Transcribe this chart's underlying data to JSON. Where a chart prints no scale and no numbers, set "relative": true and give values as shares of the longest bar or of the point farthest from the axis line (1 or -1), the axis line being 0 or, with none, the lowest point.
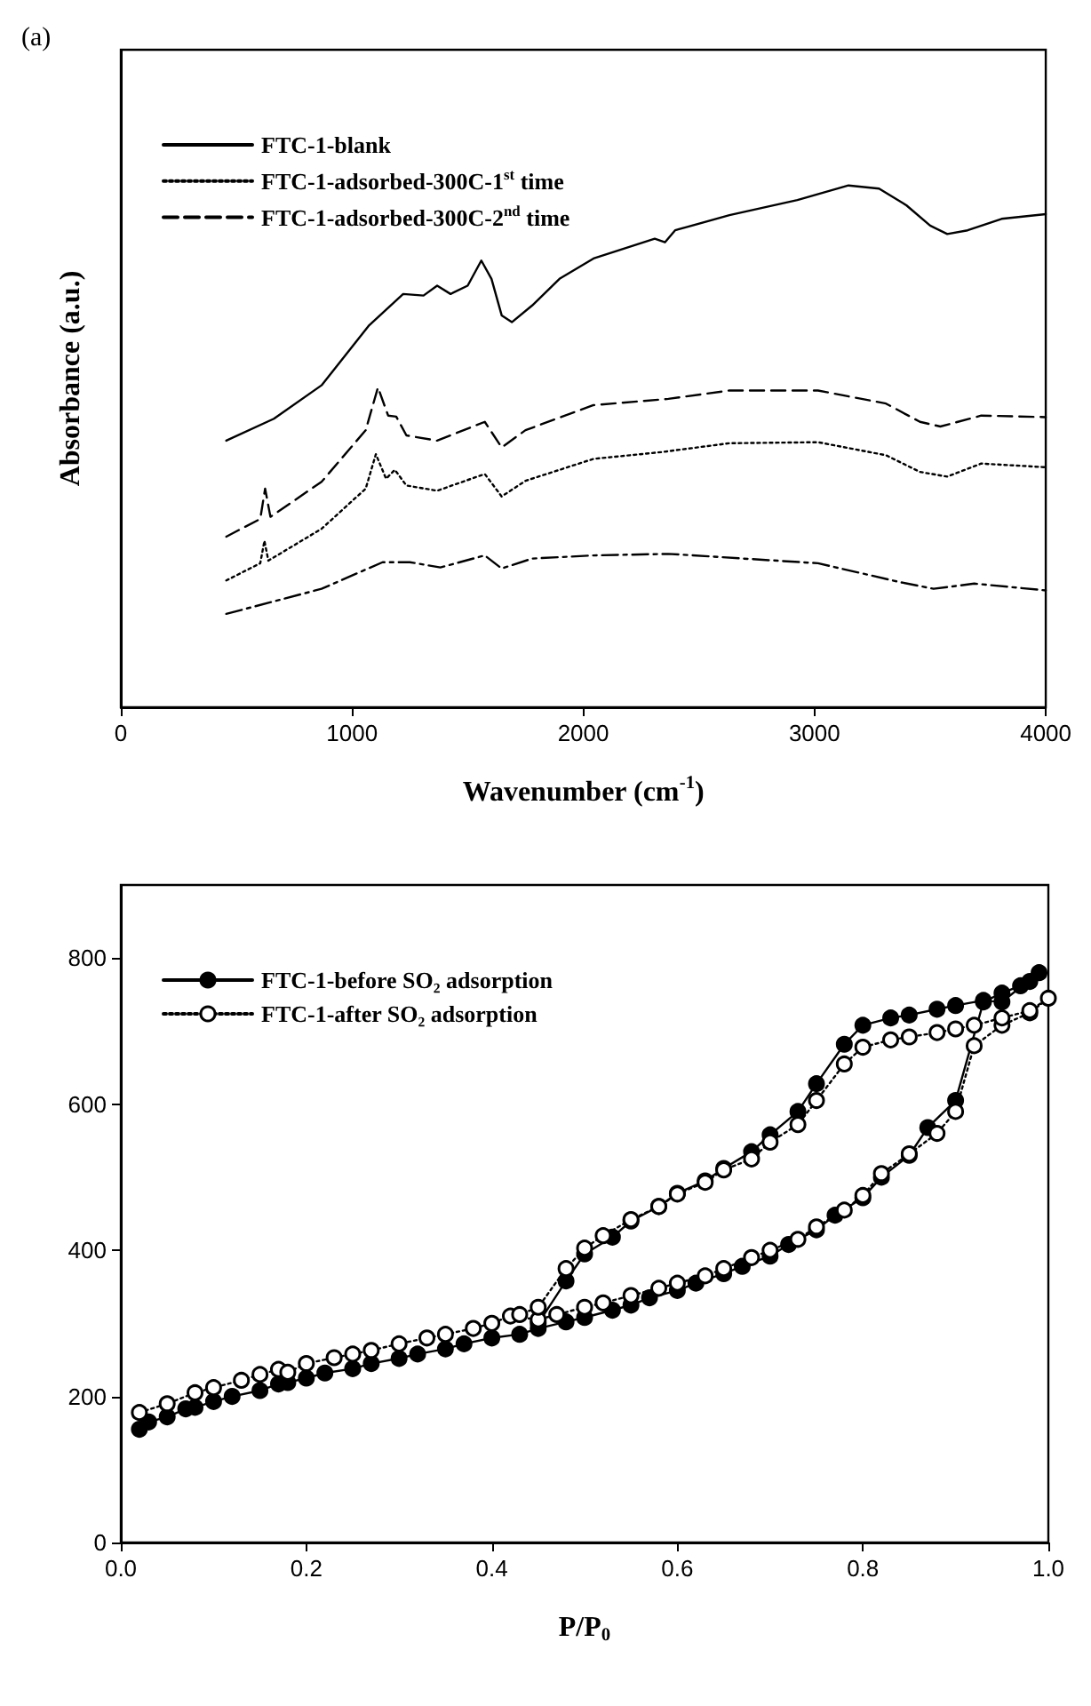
{
  "chart_data": [
    {
      "type": "line",
      "relative": true,
      "xlabel": "Wavenumber (cm$^{-1}$)",
      "ylabel": "Absorbance (a.u.)",
      "annotations": [
        "(a)"
      ],
      "xlim": [
        0,
        4000
      ],
      "xticks": [
        0,
        1000,
        2000,
        3000,
        4000
      ],
      "legend": "top left",
      "grid": false,
      "marker": "none",
      "series": [
        {
          "name": "FTC-1-blank",
          "color": "#000000",
          "line_style": "solid",
          "x": [
            456,
            662,
            868,
            1074,
            1221,
            1309,
            1368,
            1426,
            1500,
            1559,
            1603,
            1647,
            1691,
            1779,
            1897,
            2044,
            2309,
            2353,
            2397,
            2632,
            2926,
            3147,
            3279,
            3397,
            3500,
            3574,
            3662,
            3809,
            4000
          ],
          "values": [
            0.511,
            0.553,
            0.617,
            0.732,
            0.792,
            0.789,
            0.808,
            0.792,
            0.808,
            0.856,
            0.821,
            0.751,
            0.738,
            0.77,
            0.821,
            0.86,
            0.898,
            0.891,
            0.914,
            0.943,
            0.972,
            1.0,
            0.994,
            0.962,
            0.923,
            0.907,
            0.914,
            0.936,
            0.945
          ]
        },
        {
          "name": "FTC-1-adsorbed-300C-1$^{st}$ time",
          "color": "#000000",
          "line_style": "dotted",
          "x": [
            456,
            603,
            621,
            638,
            868,
            1059,
            1103,
            1147,
            1185,
            1235,
            1368,
            1574,
            1647,
            1750,
            2044,
            2338,
            2632,
            3015,
            3309,
            3456,
            3574,
            3721,
            4000
          ],
          "values": [
            0.243,
            0.276,
            0.319,
            0.281,
            0.342,
            0.419,
            0.485,
            0.438,
            0.455,
            0.425,
            0.415,
            0.447,
            0.404,
            0.434,
            0.476,
            0.489,
            0.506,
            0.508,
            0.483,
            0.451,
            0.442,
            0.467,
            0.46
          ]
        },
        {
          "name": "FTC-1-adsorbed-300C-2$^{nd}$ time",
          "color": "#000000",
          "line_style": "dashed",
          "x": [
            456,
            603,
            624,
            647,
            868,
            1059,
            1112,
            1156,
            1191,
            1235,
            1368,
            1574,
            1647,
            1750,
            2044,
            2368,
            2632,
            3015,
            3309,
            3456,
            3544,
            3721,
            4000
          ],
          "values": [
            0.327,
            0.361,
            0.419,
            0.365,
            0.432,
            0.531,
            0.613,
            0.559,
            0.557,
            0.521,
            0.511,
            0.547,
            0.498,
            0.531,
            0.579,
            0.591,
            0.607,
            0.607,
            0.582,
            0.547,
            0.538,
            0.559,
            0.556
          ]
        },
        {
          "color": "#000000",
          "line_style": "dashdot",
          "x": [
            456,
            868,
            1132,
            1250,
            1382,
            1574,
            1647,
            1779,
            2044,
            2368,
            3015,
            3368,
            3515,
            3691,
            4000
          ],
          "values": [
            0.179,
            0.227,
            0.278,
            0.278,
            0.268,
            0.291,
            0.266,
            0.285,
            0.291,
            0.294,
            0.276,
            0.24,
            0.227,
            0.237,
            0.224
          ]
        }
      ]
    },
    {
      "type": "line",
      "xlabel": "P/P$_{0}$",
      "xlim": [
        0,
        1.0
      ],
      "xticks": [
        {
          "value": 0,
          "label": "0.0"
        },
        0.2,
        0.4,
        0.6,
        0.8,
        {
          "value": 1.0,
          "label": "1.0"
        }
      ],
      "ylim": [
        0,
        900
      ],
      "yticks": [
        0,
        200,
        400,
        600,
        800
      ],
      "legend": "top left",
      "grid": false,
      "marker": "circle",
      "series": [
        {
          "name": "FTC-1-before SO₂ adsorption",
          "color": "#000000",
          "line_style": "solid",
          "x": [
            0.02,
            0.03,
            0.05,
            0.07,
            0.08,
            0.1,
            0.12,
            0.15,
            0.17,
            0.18,
            0.2,
            0.22,
            0.25,
            0.27,
            0.3,
            0.32,
            0.35,
            0.37,
            0.4,
            0.43,
            0.45,
            0.48,
            0.5,
            0.53,
            0.55,
            0.57,
            0.6,
            0.62,
            0.65,
            0.67,
            0.7,
            0.72,
            0.75,
            0.77,
            0.8,
            0.82,
            0.85,
            0.87,
            0.9,
            0.93,
            0.95,
            0.97,
            0.98,
            0.99,
            0.95,
            0.93,
            0.9,
            0.88,
            0.85,
            0.83,
            0.8,
            0.78,
            0.75,
            0.73,
            0.7,
            0.68,
            0.65,
            0.63,
            0.6,
            0.58,
            0.55,
            0.53,
            0.5,
            0.48,
            0.45
          ],
          "values": [
            155,
            165,
            172,
            183,
            185,
            193,
            200,
            208,
            217,
            219,
            225,
            232,
            238,
            245,
            252,
            258,
            265,
            272,
            280,
            285,
            293,
            302,
            308,
            318,
            325,
            335,
            345,
            355,
            368,
            378,
            392,
            408,
            428,
            448,
            472,
            500,
            530,
            568,
            605,
            740,
            752,
            762,
            768,
            780,
            740,
            742,
            735,
            730,
            722,
            718,
            708,
            682,
            628,
            590,
            558,
            535,
            512,
            495,
            478,
            460,
            440,
            418,
            395,
            358,
            300
          ]
        },
        {
          "name": "FTC-1-after SO₂ adsorption",
          "color": "#000000",
          "colors": [
            "#ffffff",
            "#ffffff",
            "#ffffff",
            "#ffffff",
            "#ffffff",
            "#ffffff",
            "#ffffff",
            "#ffffff",
            "#ffffff",
            "#ffffff",
            "#ffffff",
            "#ffffff",
            "#ffffff",
            "#ffffff",
            "#ffffff",
            "#ffffff",
            "#ffffff",
            "#ffffff",
            "#ffffff",
            "#ffffff",
            "#ffffff",
            "#ffffff",
            "#ffffff",
            "#ffffff",
            "#ffffff",
            "#ffffff",
            "#ffffff",
            "#ffffff",
            "#ffffff",
            "#ffffff",
            "#ffffff",
            "#ffffff",
            "#ffffff",
            "#ffffff",
            "#ffffff",
            "#ffffff",
            "#ffffff",
            "#ffffff",
            "#ffffff",
            "#ffffff",
            "#ffffff",
            "#ffffff",
            "#ffffff",
            "#ffffff",
            "#ffffff",
            "#ffffff",
            "#ffffff",
            "#ffffff",
            "#ffffff",
            "#ffffff",
            "#ffffff",
            "#ffffff",
            "#ffffff",
            "#ffffff",
            "#ffffff",
            "#ffffff",
            "#ffffff",
            "#ffffff",
            "#ffffff",
            "#ffffff",
            "#ffffff",
            "#ffffff",
            "#ffffff",
            "#ffffff"
          ],
          "line_style": "dotted",
          "x": [
            0.02,
            0.05,
            0.08,
            0.1,
            0.13,
            0.15,
            0.17,
            0.18,
            0.2,
            0.23,
            0.25,
            0.27,
            0.3,
            0.33,
            0.35,
            0.38,
            0.4,
            0.42,
            0.45,
            0.47,
            0.5,
            0.52,
            0.55,
            0.58,
            0.6,
            0.63,
            0.65,
            0.68,
            0.7,
            0.73,
            0.75,
            0.78,
            0.8,
            0.82,
            0.85,
            0.88,
            0.9,
            0.92,
            0.95,
            0.98,
            1.0,
            0.98,
            0.95,
            0.92,
            0.9,
            0.88,
            0.85,
            0.83,
            0.8,
            0.78,
            0.75,
            0.73,
            0.7,
            0.68,
            0.65,
            0.63,
            0.6,
            0.58,
            0.55,
            0.52,
            0.5,
            0.48,
            0.45,
            0.43
          ],
          "values": [
            178,
            190,
            205,
            212,
            222,
            230,
            237,
            233,
            245,
            253,
            258,
            263,
            272,
            280,
            285,
            293,
            300,
            310,
            305,
            312,
            322,
            328,
            338,
            348,
            355,
            365,
            375,
            390,
            400,
            415,
            432,
            455,
            475,
            505,
            532,
            560,
            590,
            680,
            708,
            725,
            745,
            728,
            718,
            708,
            703,
            698,
            692,
            688,
            678,
            655,
            605,
            572,
            548,
            525,
            510,
            493,
            477,
            460,
            442,
            420,
            403,
            375,
            322,
            312
          ]
        }
      ]
    }
  ]
}
